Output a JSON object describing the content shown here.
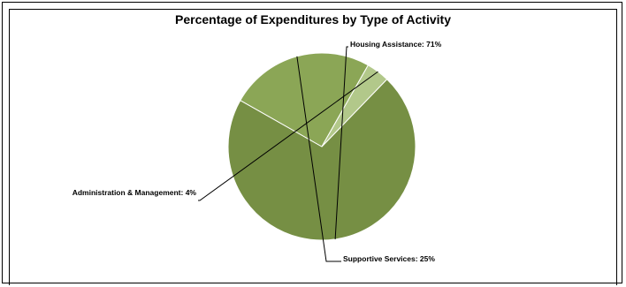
{
  "chart_data": {
    "type": "pie",
    "title": "Percentage of Expenditures by Type of Activity",
    "slices": [
      {
        "label": "Housing Assistance",
        "value": 71,
        "display": "Housing Assistance:  71%",
        "color": "#768f44"
      },
      {
        "label": "Supportive Services",
        "value": 25,
        "display": "Supportive Services:  25%",
        "color": "#8ba656"
      },
      {
        "label": "Administration & Management",
        "value": 4,
        "display": "Administration & Management:  4%",
        "color": "#b2c88a"
      }
    ],
    "legend": "none",
    "slice_border_color": "#ffffff"
  }
}
